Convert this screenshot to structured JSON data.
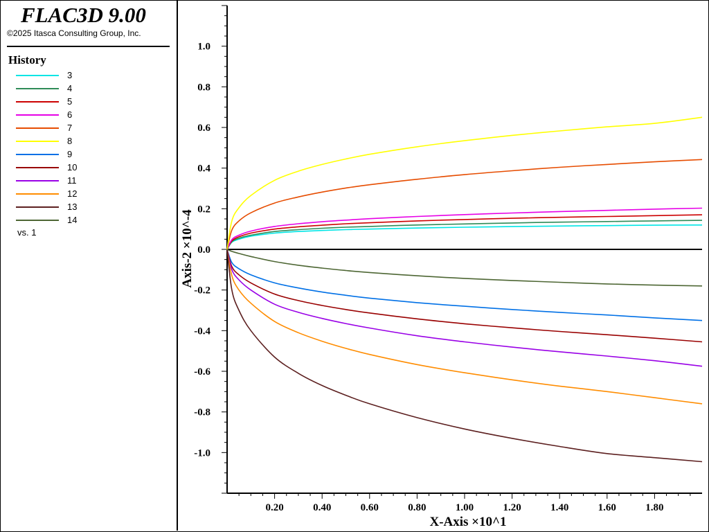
{
  "header": {
    "app_title": "FLAC3D 9.00",
    "copyright": "©2025 Itasca Consulting Group, Inc."
  },
  "legend": {
    "heading": "History",
    "items": [
      {
        "label": "3",
        "color": "#00e5e5"
      },
      {
        "label": "4",
        "color": "#2e8b57"
      },
      {
        "label": "5",
        "color": "#cc0000"
      },
      {
        "label": "6",
        "color": "#e600e6"
      },
      {
        "label": "7",
        "color": "#e64c00"
      },
      {
        "label": "8",
        "color": "#ffff00"
      },
      {
        "label": "9",
        "color": "#0070e6"
      },
      {
        "label": "10",
        "color": "#990000"
      },
      {
        "label": "11",
        "color": "#9900e6"
      },
      {
        "label": "12",
        "color": "#ff8c00"
      },
      {
        "label": "13",
        "color": "#5c1f1f"
      },
      {
        "label": "14",
        "color": "#4d6633"
      }
    ],
    "vs_label": "vs. 1"
  },
  "chart_data": {
    "type": "line",
    "xlabel": "X-Axis ×10^1",
    "ylabel": "Axis-2 ×10^-4",
    "xlim": [
      0.0,
      2.0
    ],
    "ylim": [
      -1.2,
      1.2
    ],
    "x_ticks": [
      "0.20",
      "0.40",
      "0.60",
      "0.80",
      "1.00",
      "1.20",
      "1.40",
      "1.60",
      "1.80"
    ],
    "y_ticks": [
      "1.0",
      "0.8",
      "0.6",
      "0.4",
      "0.2",
      "0.0",
      "-0.2",
      "-0.4",
      "-0.6",
      "-0.8",
      "-1.0"
    ],
    "x": [
      0.0,
      0.02,
      0.05,
      0.1,
      0.2,
      0.3,
      0.4,
      0.5,
      0.6,
      0.8,
      1.0,
      1.2,
      1.4,
      1.6,
      1.8,
      2.0
    ],
    "series": [
      {
        "name": "3",
        "color": "#00e5e5",
        "values": [
          0.0,
          0.035,
          0.05,
          0.065,
          0.08,
          0.088,
          0.093,
          0.097,
          0.1,
          0.105,
          0.109,
          0.112,
          0.115,
          0.117,
          0.119,
          0.12
        ]
      },
      {
        "name": "4",
        "color": "#2e8b57",
        "values": [
          0.0,
          0.038,
          0.055,
          0.07,
          0.088,
          0.097,
          0.104,
          0.109,
          0.113,
          0.12,
          0.125,
          0.13,
          0.134,
          0.137,
          0.14,
          0.143
        ]
      },
      {
        "name": "5",
        "color": "#cc0000",
        "values": [
          0.0,
          0.042,
          0.062,
          0.08,
          0.1,
          0.111,
          0.119,
          0.126,
          0.131,
          0.14,
          0.147,
          0.153,
          0.158,
          0.162,
          0.166,
          0.17
        ]
      },
      {
        "name": "6",
        "color": "#e600e6",
        "values": [
          0.0,
          0.048,
          0.07,
          0.09,
          0.113,
          0.126,
          0.136,
          0.144,
          0.151,
          0.162,
          0.171,
          0.179,
          0.186,
          0.192,
          0.198,
          0.203
        ]
      },
      {
        "name": "7",
        "color": "#e64c00",
        "values": [
          0.0,
          0.095,
          0.14,
          0.18,
          0.228,
          0.258,
          0.282,
          0.302,
          0.318,
          0.345,
          0.368,
          0.387,
          0.404,
          0.418,
          0.431,
          0.442
        ]
      },
      {
        "name": "8",
        "color": "#ffff00",
        "values": [
          0.0,
          0.14,
          0.205,
          0.265,
          0.34,
          0.385,
          0.418,
          0.445,
          0.468,
          0.505,
          0.535,
          0.561,
          0.583,
          0.603,
          0.62,
          0.65
        ]
      },
      {
        "name": "9",
        "color": "#0070e6",
        "values": [
          0.0,
          -0.065,
          -0.095,
          -0.125,
          -0.165,
          -0.19,
          -0.21,
          -0.226,
          -0.24,
          -0.262,
          -0.28,
          -0.296,
          -0.31,
          -0.323,
          -0.337,
          -0.35
        ]
      },
      {
        "name": "10",
        "color": "#990000",
        "values": [
          0.0,
          -0.085,
          -0.125,
          -0.165,
          -0.22,
          -0.252,
          -0.276,
          -0.296,
          -0.313,
          -0.342,
          -0.366,
          -0.386,
          -0.404,
          -0.42,
          -0.437,
          -0.455
        ]
      },
      {
        "name": "11",
        "color": "#9900e6",
        "values": [
          0.0,
          -0.1,
          -0.15,
          -0.2,
          -0.27,
          -0.31,
          -0.34,
          -0.365,
          -0.387,
          -0.425,
          -0.455,
          -0.481,
          -0.504,
          -0.525,
          -0.548,
          -0.575
        ]
      },
      {
        "name": "12",
        "color": "#ff8c00",
        "values": [
          0.0,
          -0.13,
          -0.2,
          -0.265,
          -0.355,
          -0.41,
          -0.452,
          -0.487,
          -0.517,
          -0.567,
          -0.607,
          -0.642,
          -0.673,
          -0.7,
          -0.73,
          -0.76
        ]
      },
      {
        "name": "13",
        "color": "#5c1f1f",
        "values": [
          0.0,
          -0.2,
          -0.3,
          -0.4,
          -0.53,
          -0.61,
          -0.67,
          -0.718,
          -0.76,
          -0.828,
          -0.884,
          -0.93,
          -0.97,
          -1.005,
          -1.025,
          -1.045
        ]
      },
      {
        "name": "14",
        "color": "#4d6633",
        "values": [
          0.0,
          -0.01,
          -0.02,
          -0.035,
          -0.06,
          -0.078,
          -0.092,
          -0.104,
          -0.114,
          -0.13,
          -0.143,
          -0.153,
          -0.162,
          -0.17,
          -0.176,
          -0.18
        ]
      }
    ]
  }
}
